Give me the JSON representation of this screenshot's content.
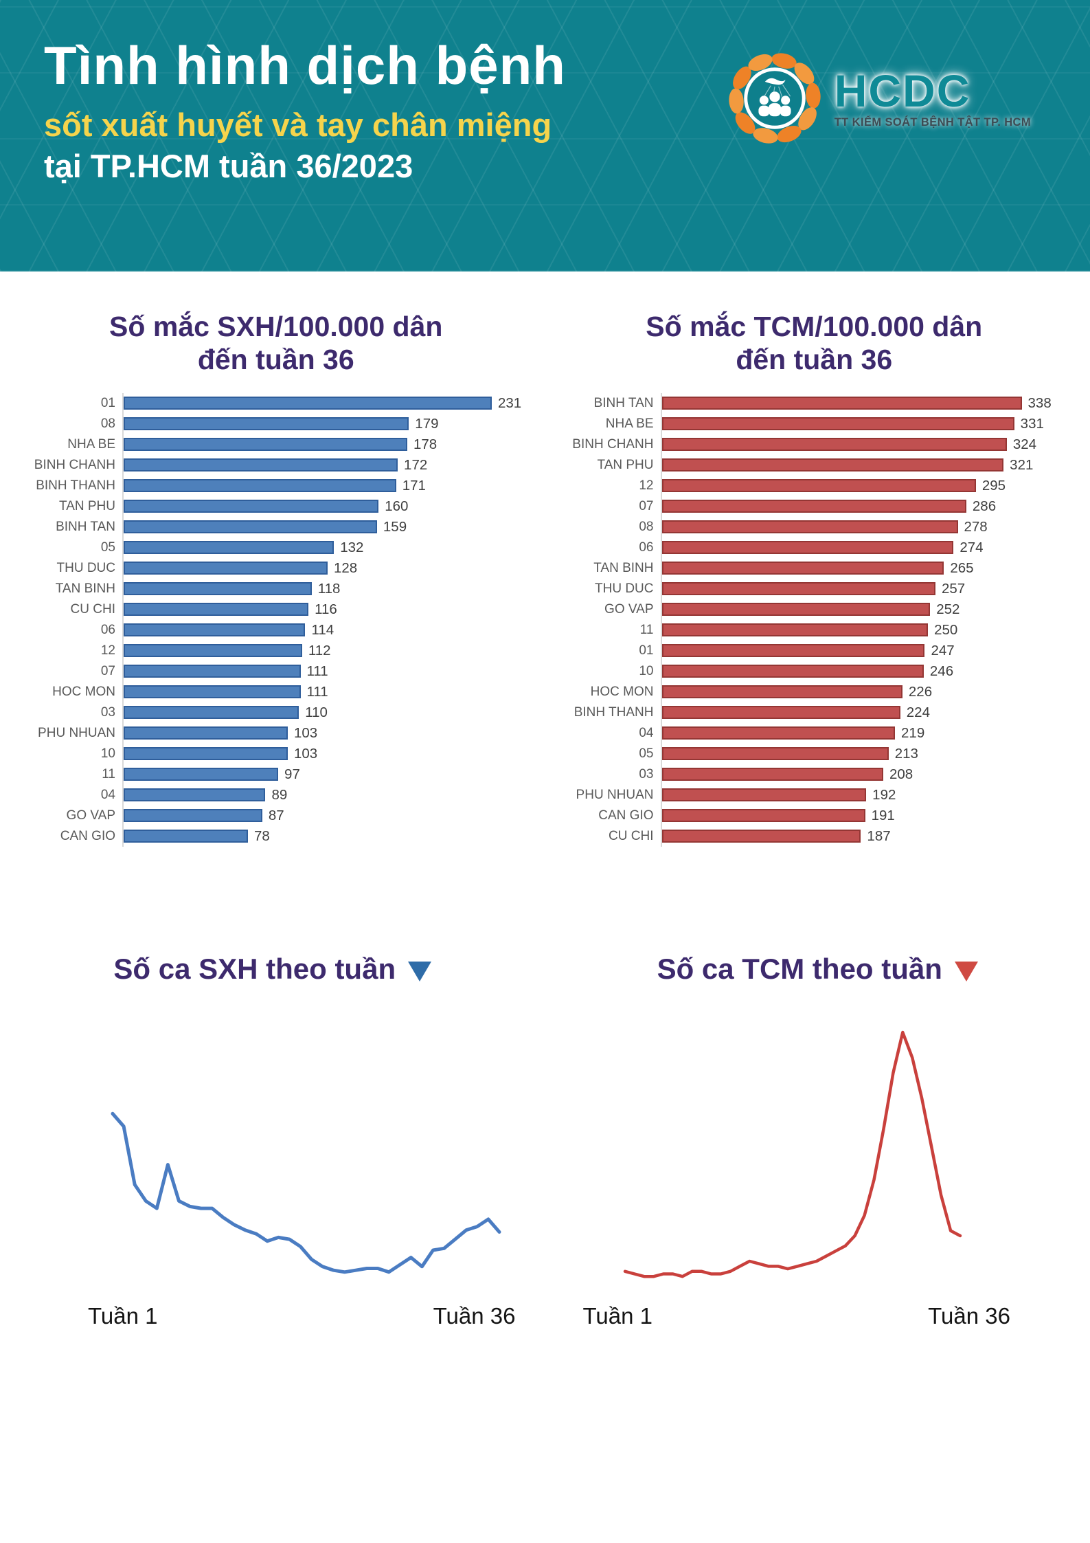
{
  "header": {
    "title": "Tình hình dịch bệnh",
    "subtitle_yellow": "sốt xuất huyết và tay chân miệng",
    "subtitle_white": "tại TP.HCM tuần 36/2023",
    "background_color": "#0f818e",
    "logo": {
      "name": "HCDC",
      "tagline": "TT KIỂM SOÁT BỆNH TẬT TP. HCM",
      "icon": "hcdc-people-wreath-icon",
      "ring_color": "#ee8227",
      "inner_color": "#0e7f8c",
      "text_color": "#0f8a96"
    }
  },
  "chart_data": [
    {
      "id": "sxh_incidence_by_district",
      "type": "bar",
      "orientation": "horizontal",
      "title_line1": "Số mắc SXH/100.000 dân",
      "title_line2": "đến tuần 36",
      "categories": [
        "01",
        "08",
        "NHA BE",
        "BINH CHANH",
        "BINH THANH",
        "TAN PHU",
        "BINH TAN",
        "05",
        "THU DUC",
        "TAN BINH",
        "CU CHI",
        "06",
        "12",
        "07",
        "HOC MON",
        "03",
        "PHU NHUAN",
        "10",
        "11",
        "04",
        "GO VAP",
        "CAN GIO"
      ],
      "values": [
        231,
        179,
        178,
        172,
        171,
        160,
        159,
        132,
        128,
        118,
        116,
        114,
        112,
        111,
        111,
        110,
        103,
        103,
        97,
        89,
        87,
        78
      ],
      "xlim": [
        0,
        240
      ],
      "value_labels": "outside-end",
      "bar_color": "#4e80bb",
      "bar_border": "#2f5e9b",
      "label_color": "#595959",
      "value_color": "#3f3f3f"
    },
    {
      "id": "tcm_incidence_by_district",
      "type": "bar",
      "orientation": "horizontal",
      "title_line1": "Số mắc TCM/100.000 dân",
      "title_line2": "đến tuần 36",
      "categories": [
        "BINH TAN",
        "NHA BE",
        "BINH CHANH",
        "TAN PHU",
        "12",
        "07",
        "08",
        "06",
        "TAN BINH",
        "THU DUC",
        "GO VAP",
        "11",
        "01",
        "10",
        "HOC MON",
        "BINH THANH",
        "04",
        "05",
        "03",
        "PHU NHUAN",
        "CAN GIO",
        "CU CHI"
      ],
      "values": [
        338,
        331,
        324,
        321,
        295,
        286,
        278,
        274,
        265,
        257,
        252,
        250,
        247,
        246,
        226,
        224,
        219,
        213,
        208,
        192,
        191,
        187
      ],
      "xlim": [
        0,
        350
      ],
      "value_labels": "outside-end",
      "bar_color": "#c05050",
      "bar_border": "#943634",
      "label_color": "#595959",
      "value_color": "#3f3f3f"
    },
    {
      "id": "sxh_cases_by_week",
      "type": "line",
      "title": "Số ca SXH theo tuần",
      "x_start_label": "Tuần 1",
      "x_end_label": "Tuần 36",
      "x_weeks": 36,
      "unit": "relative_scale_0_100_estimated_from_pixels",
      "values": [
        95,
        88,
        56,
        47,
        43,
        67,
        47,
        44,
        43,
        43,
        38,
        34,
        31,
        29,
        25,
        27,
        26,
        22,
        15,
        11,
        9,
        8,
        9,
        10,
        10,
        8,
        12,
        16,
        11,
        20,
        21,
        26,
        31,
        33,
        37,
        30
      ],
      "line_color": "#4a7cc2",
      "title_marker": "down-triangle",
      "title_marker_color": "#2e6ca8",
      "grid": false,
      "axes_hidden": true
    },
    {
      "id": "tcm_cases_by_week",
      "type": "line",
      "title": "Số ca TCM theo tuần",
      "x_start_label": "Tuần 1",
      "x_end_label": "Tuần 36",
      "x_weeks": 36,
      "unit": "relative_scale_0_100_estimated_from_pixels",
      "values": [
        6,
        5,
        4,
        4,
        5,
        5,
        4,
        6,
        6,
        5,
        5,
        6,
        8,
        10,
        9,
        8,
        8,
        7,
        8,
        9,
        10,
        12,
        14,
        16,
        20,
        28,
        42,
        62,
        84,
        100,
        90,
        74,
        55,
        36,
        22,
        20
      ],
      "line_color": "#c9403c",
      "title_marker": "down-triangle",
      "title_marker_color": "#cf4a42",
      "grid": false,
      "axes_hidden": true
    }
  ]
}
